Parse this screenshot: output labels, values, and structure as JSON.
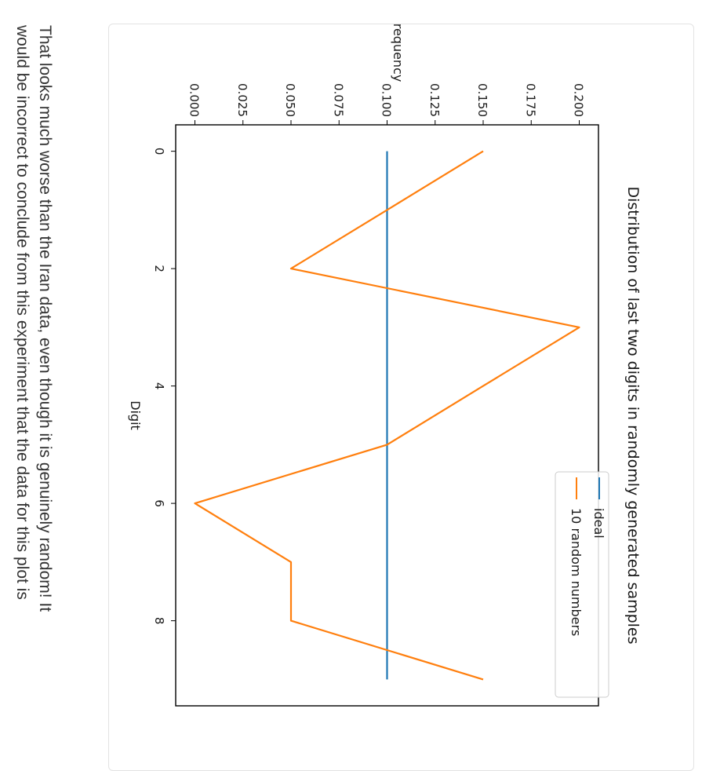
{
  "colors": {
    "ideal": "#1f77b4",
    "random": "#ff7f0e",
    "axis": "#000000"
  },
  "chart_data": {
    "type": "line",
    "orientation": "rotated-90-clockwise",
    "title": "Distribution of last two digits in randomly generated samples",
    "xlabel": "Digit",
    "ylabel": "Frequency",
    "xlim": [
      -0.45,
      9.45
    ],
    "ylim": [
      -0.01,
      0.21
    ],
    "xticks": [
      0,
      2,
      4,
      6,
      8
    ],
    "yticks": [
      "0.000",
      "0.025",
      "0.050",
      "0.075",
      "0.100",
      "0.125",
      "0.150",
      "0.175",
      "0.200"
    ],
    "x": [
      0,
      1,
      2,
      3,
      4,
      5,
      6,
      7,
      8,
      9
    ],
    "grid": false,
    "legend_position": "upper right",
    "series": [
      {
        "name": "ideal",
        "values": [
          0.1,
          0.1,
          0.1,
          0.1,
          0.1,
          0.1,
          0.1,
          0.1,
          0.1,
          0.1
        ]
      },
      {
        "name": "10 random numbers",
        "values": [
          0.15,
          0.1,
          0.05,
          0.2,
          0.15,
          0.1,
          0.0,
          0.05,
          0.05,
          0.15
        ]
      }
    ]
  },
  "paragraph": {
    "line1": "That looks much worse than the Iran data, even though it is genuinely random! It",
    "line2": "would be incorrect to conclude from this experiment that the data for this plot is"
  }
}
